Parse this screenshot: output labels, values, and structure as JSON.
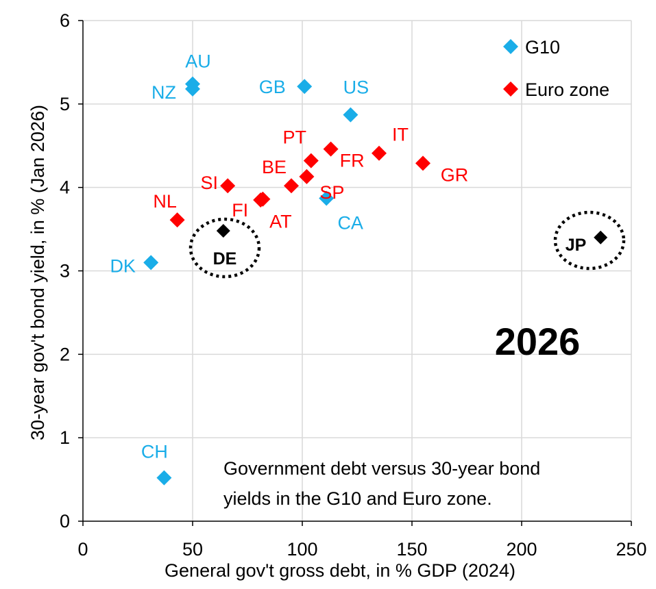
{
  "chart_data": {
    "type": "scatter",
    "xlabel": "General gov't gross debt, in % GDP (2024)",
    "ylabel": "30-year gov't bond yield, in % (Jan 2026)",
    "xlim": [
      0,
      250
    ],
    "ylim": [
      0,
      6
    ],
    "xticks": [
      "0",
      "50",
      "100",
      "150",
      "200",
      "250"
    ],
    "yticks": [
      "0",
      "1",
      "2",
      "3",
      "4",
      "5",
      "6"
    ],
    "grid": true,
    "legend_position": "top-right",
    "year": "2026",
    "note": [
      "Government debt versus 30-year bond",
      "yields in the G10 and Euro zone."
    ],
    "series": [
      {
        "name": "G10",
        "color": "#1AADE8",
        "marker": "diamond",
        "points": [
          {
            "label": "AU",
            "x": 50,
            "y": 5.24
          },
          {
            "label": "NZ",
            "x": 50,
            "y": 5.18
          },
          {
            "label": "GB",
            "x": 101,
            "y": 5.21
          },
          {
            "label": "US",
            "x": 122,
            "y": 4.87
          },
          {
            "label": "CA",
            "x": 111,
            "y": 3.87
          },
          {
            "label": "DK",
            "x": 31,
            "y": 3.1
          },
          {
            "label": "CH",
            "x": 37,
            "y": 0.52
          }
        ]
      },
      {
        "name": "Euro zone",
        "color": "#FF0000",
        "marker": "diamond",
        "points": [
          {
            "label": "IT",
            "x": 135,
            "y": 4.41
          },
          {
            "label": "GR",
            "x": 155,
            "y": 4.29
          },
          {
            "label": "FR",
            "x": 113,
            "y": 4.46
          },
          {
            "label": "PT",
            "x": 104,
            "y": 4.32
          },
          {
            "label": "SP",
            "x": 102,
            "y": 4.13
          },
          {
            "label": "BE",
            "x": 95,
            "y": 4.02
          },
          {
            "label": "AT",
            "x": 82,
            "y": 3.86
          },
          {
            "label": "FI",
            "x": 81,
            "y": 3.85
          },
          {
            "label": "SI",
            "x": 66,
            "y": 4.02
          },
          {
            "label": "NL",
            "x": 43,
            "y": 3.61
          }
        ]
      }
    ],
    "highlighted": [
      {
        "label": "DE",
        "x": 64,
        "y": 3.48,
        "color": "#000000"
      },
      {
        "label": "JP",
        "x": 236,
        "y": 3.4,
        "color": "#000000"
      }
    ]
  }
}
